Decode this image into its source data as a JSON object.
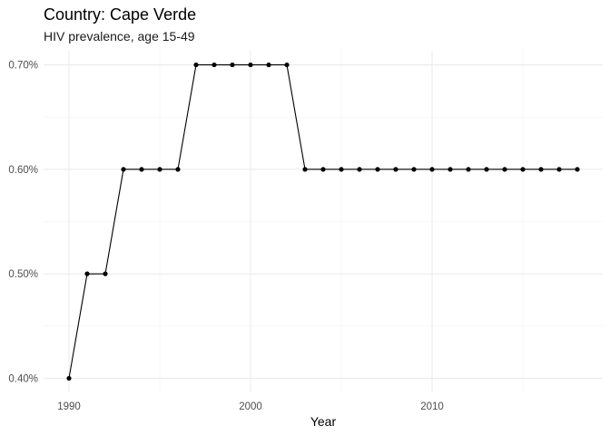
{
  "chart_data": {
    "type": "line",
    "title": "Country: Cape Verde",
    "subtitle": "HIV prevalence, age 15-49",
    "xlabel": "Year",
    "ylabel": "",
    "xlim": [
      1988.6,
      2019.4
    ],
    "ylim": [
      0.3865,
      0.7135
    ],
    "x_ticks": [
      1990,
      2000,
      2010
    ],
    "x_tick_labels": [
      "1990",
      "2000",
      "2010"
    ],
    "y_ticks": [
      0.4,
      0.5,
      0.6,
      0.7
    ],
    "y_tick_labels": [
      "0.40%",
      "0.50%",
      "0.60%",
      "0.70%"
    ],
    "grid": true,
    "legend": "none",
    "colors": {
      "line": "#000000",
      "point": "#000000",
      "grid": "#ebebeb"
    },
    "series": [
      {
        "x": [
          1990,
          1991,
          1992,
          1993,
          1994,
          1995,
          1996,
          1997,
          1998,
          1999,
          2000,
          2001,
          2002,
          2003,
          2004,
          2005,
          2006,
          2007,
          2008,
          2009,
          2010,
          2011,
          2012,
          2013,
          2014,
          2015,
          2016,
          2017,
          2018
        ],
        "values": [
          0.4,
          0.5,
          0.5,
          0.6,
          0.6,
          0.6,
          0.6,
          0.7,
          0.7,
          0.7,
          0.7,
          0.7,
          0.7,
          0.6,
          0.6,
          0.6,
          0.6,
          0.6,
          0.6,
          0.6,
          0.6,
          0.6,
          0.6,
          0.6,
          0.6,
          0.6,
          0.6,
          0.6,
          0.6
        ]
      }
    ]
  }
}
